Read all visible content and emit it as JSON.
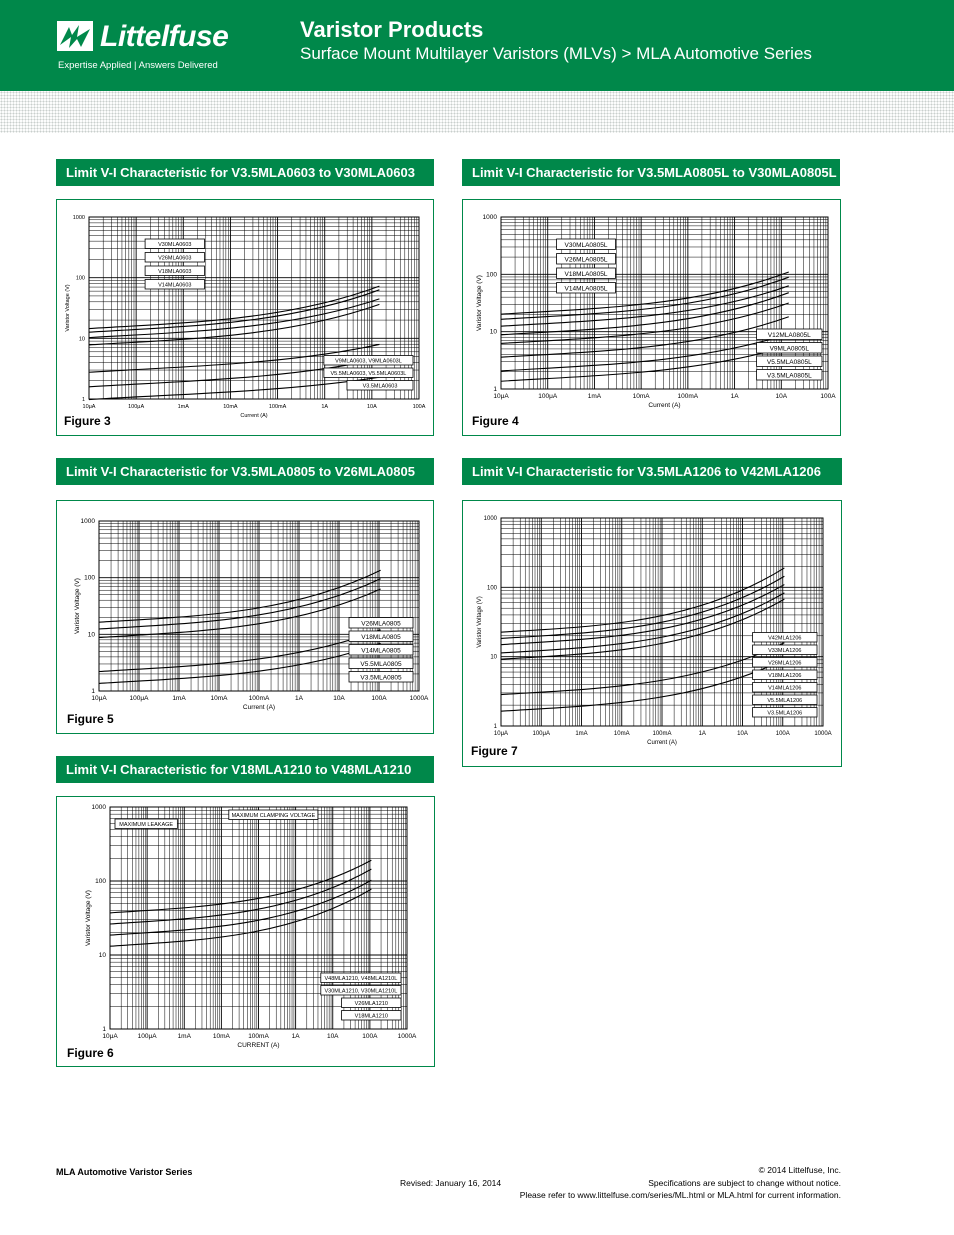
{
  "header": {
    "brand": "Littelfuse",
    "tagline": "Expertise Applied  |  Answers Delivered",
    "title": "Varistor Products",
    "subtitle": "Surface Mount Multilayer Varistors (MLVs)  >  MLA Automotive Series",
    "colors": {
      "brand_green": "#00884a",
      "text_white": "#ffffff"
    },
    "logo_icon": "littelfuse-fuse-logo-icon"
  },
  "figures": [
    {
      "id": "fig3",
      "banner": "Limit V-I Characteristic for V3.5MLA0603 to V30MLA0603",
      "label": "Figure 3",
      "ylabel": "Varistor Voltage (V)",
      "xlabel": "Current (A)",
      "xticks": [
        "10μA",
        "100μA",
        "1mA",
        "10mA",
        "100mA",
        "1A",
        "10A",
        "100A"
      ],
      "yticks": [
        "1",
        "10",
        "100",
        "1000"
      ],
      "labels_upper": [
        "V30MLA0603",
        "V26MLA0603",
        "V18MLA0603",
        "V14MLA0603"
      ],
      "labels_lower": [
        "V9MLA0603, V9MLA0603L",
        "V5.5MLA0603, V5.5MLA0603L",
        "V3.5MLA0603"
      ]
    },
    {
      "id": "fig4",
      "banner": "Limit V-I Characteristic for V3.5MLA0805L to V30MLA0805L",
      "label": "Figure 4",
      "ylabel": "Varistor Voltage (V)",
      "xlabel": "Current (A)",
      "xticks": [
        "10μA",
        "100μA",
        "1mA",
        "10mA",
        "100mA",
        "1A",
        "10A",
        "100A"
      ],
      "yticks": [
        "1",
        "10",
        "100",
        "1000"
      ],
      "labels_upper": [
        "V30MLA0805L",
        "V26MLA0805L",
        "V18MLA0805L",
        "V14MLA0805L"
      ],
      "labels_lower": [
        "V12MLA0805L",
        "V9MLA0805L",
        "V5.5MLA0805L",
        "V3.5MLA0805L"
      ]
    },
    {
      "id": "fig5",
      "banner": "Limit V-I Characteristic for V3.5MLA0805 to V26MLA0805",
      "label": "Figure 5",
      "ylabel": "Varistor Voltage (V)",
      "xlabel": "Current (A)",
      "xticks": [
        "10μA",
        "100μA",
        "1mA",
        "10mA",
        "100mA",
        "1A",
        "10A",
        "100A",
        "1000A"
      ],
      "yticks": [
        "1",
        "10",
        "100",
        "1000"
      ],
      "labels_upper": [],
      "labels_lower": [
        "V26MLA0805",
        "V18MLA0805",
        "V14MLA0805",
        "V5.5MLA0805",
        "V3.5MLA0805"
      ]
    },
    {
      "id": "fig7",
      "banner": "Limit V-I Characteristic for V3.5MLA1206 to V42MLA1206",
      "label": "Figure 7",
      "ylabel": "Varistor Voltage (V)",
      "xlabel": "Current (A)",
      "xticks": [
        "10μA",
        "100μA",
        "1mA",
        "10mA",
        "100mA",
        "1A",
        "10A",
        "100A",
        "1000A"
      ],
      "yticks": [
        "1",
        "10",
        "100",
        "1000"
      ],
      "labels_upper": [],
      "labels_lower": [
        "V42MLA1206",
        "V33MLA1206",
        "V26MLA1206",
        "V18MLA1206",
        "V14MLA1206",
        "V5.5MLA1206",
        "V3.5MLA1206"
      ]
    },
    {
      "id": "fig6",
      "banner": "Limit V-I Characteristic for V18MLA1210 to V48MLA1210",
      "label": "Figure 6",
      "ylabel": "Varistor Voltage (V)",
      "xlabel": "CURRENT (A)",
      "xticks": [
        "10μA",
        "100μA",
        "1mA",
        "10mA",
        "100mA",
        "1A",
        "10A",
        "100A",
        "1000A"
      ],
      "yticks": [
        "1",
        "10",
        "100",
        "1000"
      ],
      "top_notes": [
        "MAXIMUM LEAKAGE",
        "MAXIMUM CLAMPING VOLTAGE"
      ],
      "labels_upper": [],
      "labels_lower": [
        "V48MLA1210, V48MLA1210L",
        "V30MLA1210, V30MLA1210L",
        "V26MLA1210",
        "V18MLA1210"
      ]
    }
  ],
  "footer": {
    "series": "MLA Automotive Varistor Series",
    "revised": "Revised: January 16, 2014",
    "copyright": "© 2014 Littelfuse, Inc.",
    "spec_note": "Specifications are subject to change without notice.",
    "refer": "Please refer to www.littelfuse.com/series/ML.html or MLA.html for current information."
  }
}
